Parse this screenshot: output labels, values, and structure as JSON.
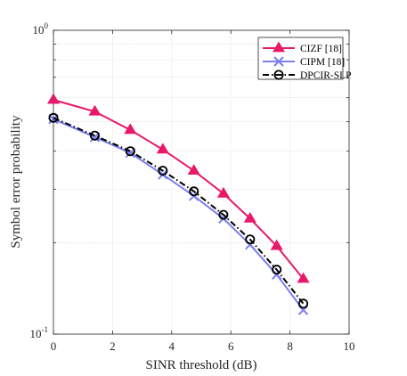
{
  "chart_data": {
    "type": "line",
    "xlabel": "SINR threshold (dB)",
    "ylabel": "Symbol error probability",
    "xlim": [
      0,
      10
    ],
    "ylim": [
      0.1,
      1
    ],
    "yscale": "log",
    "grid": true,
    "x_ticks": [
      "0",
      "2",
      "4",
      "6",
      "8",
      "10"
    ],
    "y_ticks": [
      {
        "base": "10",
        "exp": "-1",
        "value": 0.1
      },
      {
        "base": "10",
        "exp": "0",
        "value": 1
      }
    ],
    "legend": {
      "placement": "top-right"
    },
    "series": [
      {
        "name": "CIZF [18]",
        "color": "#e8196b",
        "marker": "triangle",
        "dash": "solid",
        "x": [
          0,
          1.4,
          2.6,
          3.7,
          4.75,
          5.75,
          6.65,
          7.55,
          8.45
        ],
        "y": [
          0.59,
          0.54,
          0.47,
          0.405,
          0.345,
          0.29,
          0.24,
          0.195,
          0.152
        ]
      },
      {
        "name": "CIPM [18]",
        "color": "#7b7ff0",
        "marker": "x",
        "dash": "solid",
        "x": [
          0,
          1.4,
          2.6,
          3.7,
          4.75,
          5.75,
          6.65,
          7.55,
          8.45
        ],
        "y": [
          0.51,
          0.445,
          0.395,
          0.335,
          0.285,
          0.24,
          0.197,
          0.157,
          0.12
        ]
      },
      {
        "name": "DPCIR-SLP",
        "color": "#000000",
        "marker": "circle",
        "dash": "dashdot",
        "x": [
          0,
          1.4,
          2.6,
          3.7,
          4.75,
          5.75,
          6.65,
          7.55,
          8.45
        ],
        "y": [
          0.515,
          0.45,
          0.4,
          0.345,
          0.295,
          0.247,
          0.205,
          0.163,
          0.126
        ]
      }
    ]
  }
}
